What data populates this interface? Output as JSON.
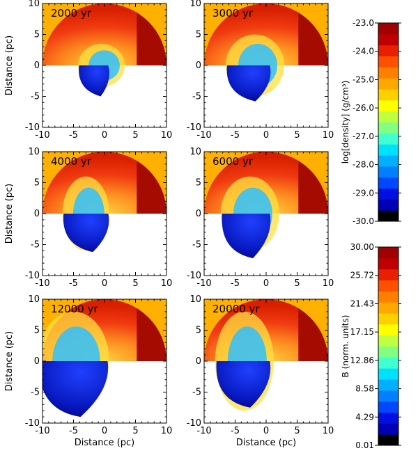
{
  "chart_data": {
    "type": "heatmap",
    "title": "",
    "panels": [
      {
        "time": "2000",
        "unit": "yr",
        "xlabel": "",
        "ylabel": "Distance (pc)",
        "bubble": {
          "cx": -0.5,
          "rx": 3.6,
          "top": 3.5,
          "bottom": -5.0
        }
      },
      {
        "time": "3000",
        "unit": "yr",
        "xlabel": "",
        "ylabel": "",
        "bubble": {
          "cx": -1.8,
          "rx": 4.5,
          "top": 5.0,
          "bottom": -5.8
        }
      },
      {
        "time": "4000",
        "unit": "yr",
        "xlabel": "",
        "ylabel": "Distance (pc)",
        "bubble": {
          "cx": -3.0,
          "rx": 3.6,
          "top": 6.0,
          "bottom": -6.2
        }
      },
      {
        "time": "6000",
        "unit": "yr",
        "xlabel": "",
        "ylabel": "",
        "bubble": {
          "cx": -2.6,
          "rx": 4.5,
          "top": 6.0,
          "bottom": -7.2
        }
      },
      {
        "time": "12000",
        "unit": "yr",
        "xlabel": "Distance (pc)",
        "ylabel": "Distance (pc)",
        "bubble": {
          "cx": -5.0,
          "rx": 5.5,
          "top": 8.0,
          "bottom": -9.0
        }
      },
      {
        "time": "20000",
        "unit": "yr",
        "xlabel": "Distance (pc)",
        "ylabel": "",
        "bubble": {
          "cx": -3.5,
          "rx": 4.5,
          "top": 8.0,
          "bottom": -7.5
        }
      }
    ],
    "x_range": [
      -10,
      10
    ],
    "y_range": [
      -10,
      10
    ],
    "x_ticks": [
      -10,
      -5,
      0,
      5,
      10
    ],
    "y_ticks": [
      -10,
      -5,
      0,
      5,
      10
    ],
    "colorbars": [
      {
        "title": "log[density] (g/cm³)",
        "range": [
          -30.0,
          -23.0
        ],
        "labels": [
          "-23.0",
          "-24.0",
          "-25.0",
          "-26.0",
          "-27.0",
          "-28.0",
          "-29.0",
          "-30.0"
        ]
      },
      {
        "title": "B (norm. units)",
        "range": [
          0.01,
          30.0
        ],
        "labels": [
          "30.00",
          "25.72",
          "21.43",
          "17.15",
          "12.86",
          "8.58",
          "4.29",
          "0.01"
        ]
      }
    ],
    "palette": [
      "#000000",
      "#0000b4",
      "#0010e0",
      "#0048ff",
      "#0080ff",
      "#00b0ff",
      "#00e0ff",
      "#40ffd0",
      "#80ff80",
      "#c0ff40",
      "#ffff00",
      "#ffd000",
      "#ffa800",
      "#ff8000",
      "#ff5000",
      "#e82000",
      "#c00000",
      "#a00000"
    ],
    "colors": {
      "background_orange": "#ffb000",
      "dense_red": "#a50b00",
      "ambient_red": "#f03a10",
      "bubble_blue": "#0a1ec8",
      "shell_yellow": "#ffe040"
    }
  }
}
